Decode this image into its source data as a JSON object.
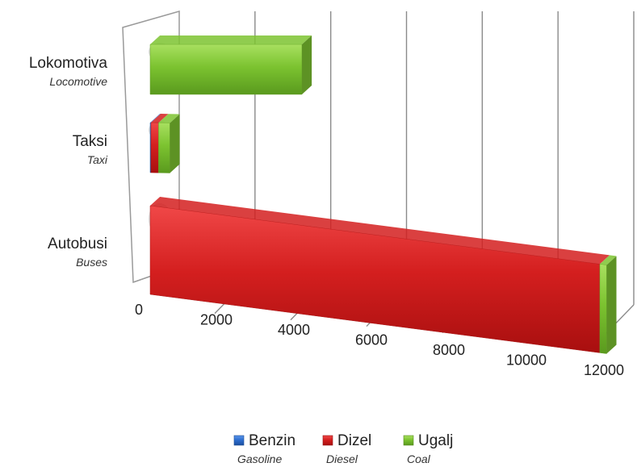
{
  "chart_data": {
    "type": "bar",
    "orientation": "horizontal",
    "stacked": true,
    "three_d": true,
    "categories": [
      {
        "name": "Lokomotiva",
        "translation": "Locomotive"
      },
      {
        "name": "Taksi",
        "translation": "Taxi"
      },
      {
        "name": "Autobusi",
        "translation": "Buses"
      }
    ],
    "series": [
      {
        "name": "Benzin",
        "translation": "Gasoline",
        "color": "#2e6fd0",
        "values": [
          0,
          20,
          0
        ]
      },
      {
        "name": "Dizel",
        "translation": "Diesel",
        "color": "#d41f1f",
        "values": [
          0,
          200,
          11850
        ]
      },
      {
        "name": "Ugalj",
        "translation": "Coal",
        "color": "#7cc330",
        "values": [
          4000,
          300,
          180
        ]
      }
    ],
    "xlim": [
      0,
      12000
    ],
    "x_ticks": [
      "0",
      "2000",
      "4000",
      "6000",
      "8000",
      "10000",
      "12000"
    ],
    "grid": true,
    "legend_position": "bottom"
  }
}
